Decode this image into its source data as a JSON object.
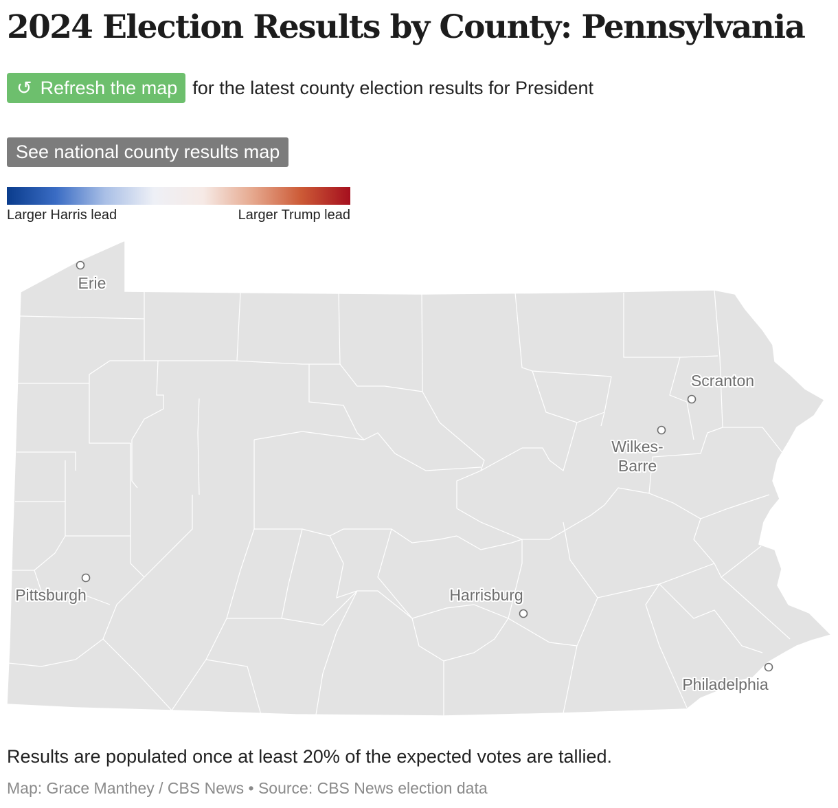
{
  "title": "2024 Election Results by County: Pennsylvania",
  "refresh": {
    "button_label": "Refresh the map",
    "icon": "refresh-icon",
    "suffix_text": "for the latest county election results for President"
  },
  "national_button_label": "See national county results map",
  "legend": {
    "left_label": "Larger Harris lead",
    "right_label": "Larger Trump lead",
    "gradient_colors": [
      "#0a3c8c",
      "#3a6cc4",
      "#a9bfe6",
      "#eef0f6",
      "#f6eae6",
      "#e6a98f",
      "#cc5a36",
      "#a50f1e"
    ]
  },
  "map": {
    "state": "Pennsylvania",
    "county_fill": "#e3e3e3",
    "border_color": "#ffffff",
    "cities": [
      {
        "name": "Erie",
        "label_lines": [
          "Erie"
        ]
      },
      {
        "name": "Scranton",
        "label_lines": [
          "Scranton"
        ]
      },
      {
        "name": "Wilkes-Barre",
        "label_lines": [
          "Wilkes-",
          "Barre"
        ]
      },
      {
        "name": "Pittsburgh",
        "label_lines": [
          "Pittsburgh"
        ]
      },
      {
        "name": "Harrisburg",
        "label_lines": [
          "Harrisburg"
        ]
      },
      {
        "name": "Philadelphia",
        "label_lines": [
          "Philadelphia"
        ]
      }
    ]
  },
  "note": "Results are populated once at least 20% of the expected votes are tallied.",
  "credit": "Map: Grace Manthey / CBS News • Source: CBS News election data"
}
